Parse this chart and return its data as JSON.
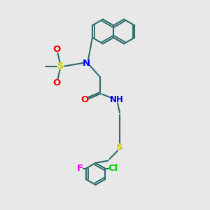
{
  "background_color": "#e8e8e8",
  "bond_color": "#2d6b6b",
  "bond_width": 1.5,
  "atom_colors": {
    "N": "#0000ff",
    "O": "#ff0000",
    "S_sulfonyl": "#cccc00",
    "S_thio": "#cccc00",
    "F": "#ff00ff",
    "Cl": "#00cc00"
  },
  "font_size": 8.5,
  "xlim": [
    0,
    10
  ],
  "ylim": [
    0,
    10
  ]
}
